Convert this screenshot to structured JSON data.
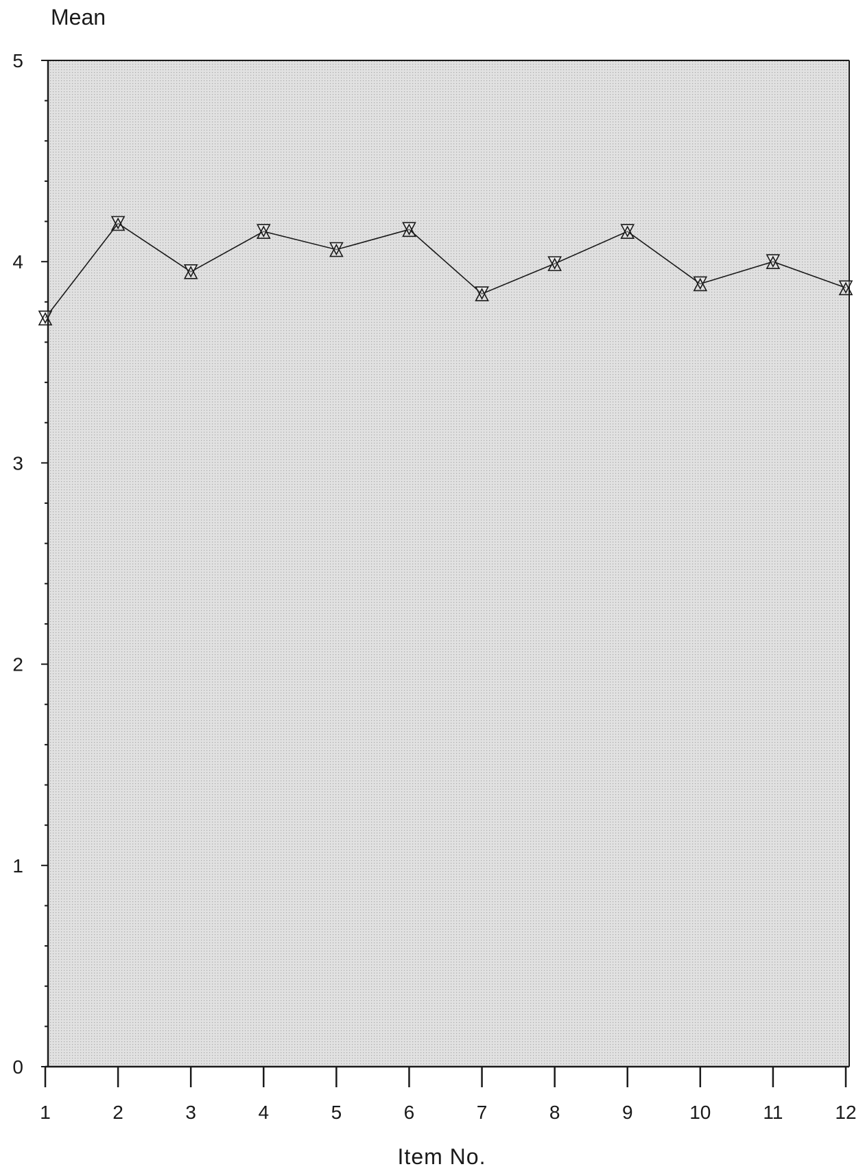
{
  "chart_data": {
    "type": "line",
    "title": "",
    "xlabel": "Item No.",
    "ylabel": "Mean",
    "x": [
      1,
      2,
      3,
      4,
      5,
      6,
      7,
      8,
      9,
      10,
      11,
      12
    ],
    "series": [
      {
        "values": [
          3.72,
          4.19,
          3.95,
          4.15,
          4.06,
          4.16,
          3.84,
          3.99,
          4.15,
          3.89,
          4.0,
          3.87
        ]
      }
    ],
    "xlim": [
      1,
      12
    ],
    "ylim": [
      0,
      5
    ],
    "x_ticks": [
      "1",
      "2",
      "3",
      "4",
      "5",
      "6",
      "7",
      "8",
      "9",
      "10",
      "11",
      "12"
    ],
    "y_ticks": [
      "0",
      "1",
      "2",
      "3",
      "4",
      "5"
    ],
    "y_minor_step": 0.2,
    "marker": "hourglass-triangles",
    "grid": false,
    "legend": "none",
    "colors": {
      "plot_background": "#dcdcdc",
      "line": "#1a1a1a",
      "marker_fill": "#ffffff"
    }
  }
}
